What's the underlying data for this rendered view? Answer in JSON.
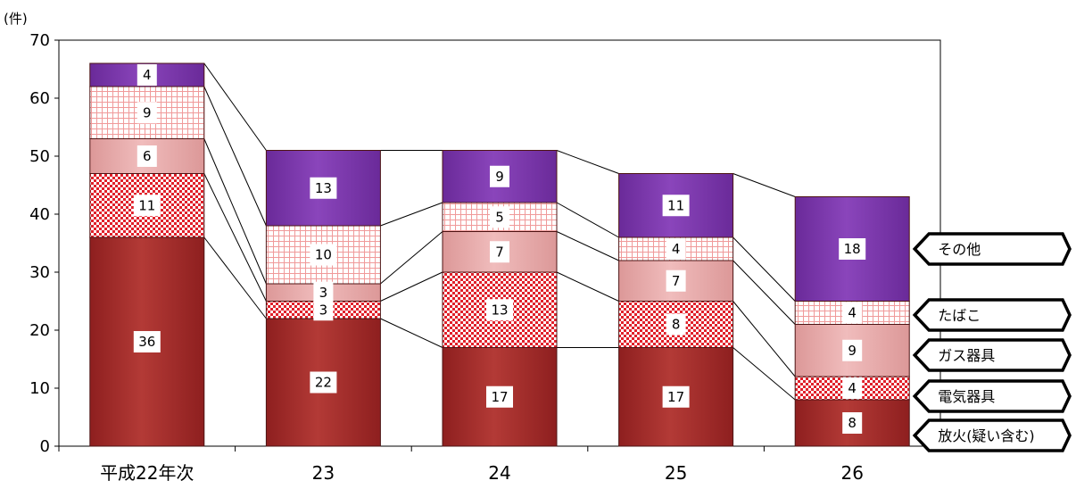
{
  "chart_data": {
    "type": "bar",
    "stacked": true,
    "y_unit": "(件)",
    "ylim": [
      0,
      70
    ],
    "yticks": [
      0,
      10,
      20,
      30,
      40,
      50,
      60,
      70
    ],
    "categories": [
      "平成22年次",
      "23",
      "24",
      "25",
      "26"
    ],
    "series": [
      {
        "name": "放火(疑い含む)",
        "values": [
          36,
          22,
          17,
          17,
          8
        ],
        "color": "#a52a2a",
        "pattern": "solid"
      },
      {
        "name": "電気器具",
        "values": [
          11,
          3,
          13,
          8,
          4
        ],
        "color": "#e0202a",
        "pattern": "checker"
      },
      {
        "name": "ガス器具",
        "values": [
          6,
          3,
          7,
          7,
          9
        ],
        "color": "#e6a4a4",
        "pattern": "solid"
      },
      {
        "name": "たばこ",
        "values": [
          9,
          10,
          5,
          4,
          4
        ],
        "color": "#f2a8a8",
        "pattern": "grid"
      },
      {
        "name": "その他",
        "values": [
          4,
          13,
          9,
          11,
          18
        ],
        "color": "#7b35ab",
        "pattern": "solid"
      }
    ],
    "legend_position": "right, arrow callouts"
  }
}
